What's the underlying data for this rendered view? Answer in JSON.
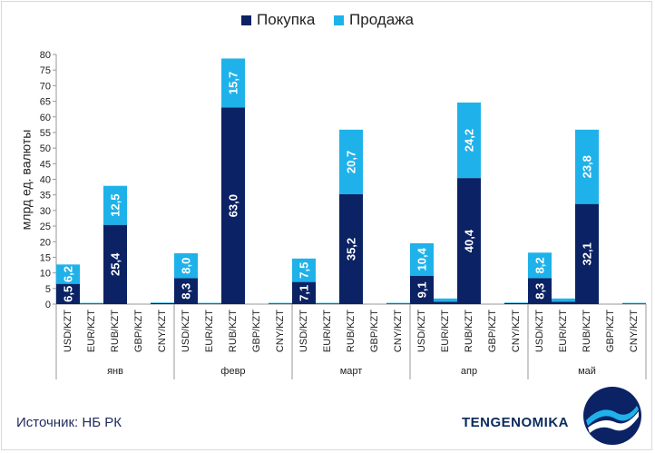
{
  "chart_data": {
    "type": "bar",
    "stacked": true,
    "ylabel": "млрд ед. валюты",
    "ylim": [
      0,
      80
    ],
    "yticks": [
      0,
      5,
      10,
      15,
      20,
      25,
      30,
      35,
      40,
      45,
      50,
      55,
      60,
      65,
      70,
      75,
      80
    ],
    "legend_position": "top",
    "groups": [
      "янв",
      "февр",
      "март",
      "апр",
      "май"
    ],
    "categories": [
      "USD/KZT",
      "EUR/KZT",
      "RUB/KZT",
      "GBP/KZT",
      "CNY/KZT"
    ],
    "series": [
      {
        "name": "Покупка",
        "color": "#0b2264",
        "values": [
          [
            6.5,
            0.2,
            25.4,
            0.0,
            0.3
          ],
          [
            8.3,
            0.2,
            63.0,
            0.0,
            0.2
          ],
          [
            7.1,
            0.2,
            35.2,
            0.0,
            0.2
          ],
          [
            9.1,
            0.8,
            40.4,
            0.0,
            0.3
          ],
          [
            8.3,
            0.8,
            32.1,
            0.0,
            0.2
          ]
        ],
        "labels": [
          [
            "6,5",
            "",
            "25,4",
            "",
            ""
          ],
          [
            "8,3",
            "",
            "63,0",
            "",
            ""
          ],
          [
            "7,1",
            "",
            "35,2",
            "",
            ""
          ],
          [
            "9,1",
            "",
            "40,4",
            "",
            ""
          ],
          [
            "8,3",
            "",
            "32,1",
            "",
            ""
          ]
        ]
      },
      {
        "name": "Продажа",
        "color": "#1fb2ea",
        "values": [
          [
            6.2,
            0.2,
            12.5,
            0.0,
            0.2
          ],
          [
            8.0,
            0.2,
            15.7,
            0.0,
            0.2
          ],
          [
            7.5,
            0.2,
            20.7,
            0.0,
            0.2
          ],
          [
            10.4,
            1.0,
            24.2,
            0.0,
            0.2
          ],
          [
            8.2,
            1.0,
            23.8,
            0.0,
            0.2
          ]
        ],
        "labels": [
          [
            "6,2",
            "",
            "12,5",
            "",
            ""
          ],
          [
            "8,0",
            "",
            "15,7",
            "",
            ""
          ],
          [
            "7,5",
            "",
            "20,7",
            "",
            ""
          ],
          [
            "10,4",
            "",
            "24,2",
            "",
            ""
          ],
          [
            "8,2",
            "",
            "23,8",
            "",
            ""
          ]
        ]
      }
    ]
  },
  "footer": {
    "source": "Источник: НБ РК",
    "brand": "TENGENOMIKA"
  },
  "logo_colors": {
    "background": "#0b2264",
    "accent": "#1fb2ea",
    "wave": "#ffffff"
  }
}
